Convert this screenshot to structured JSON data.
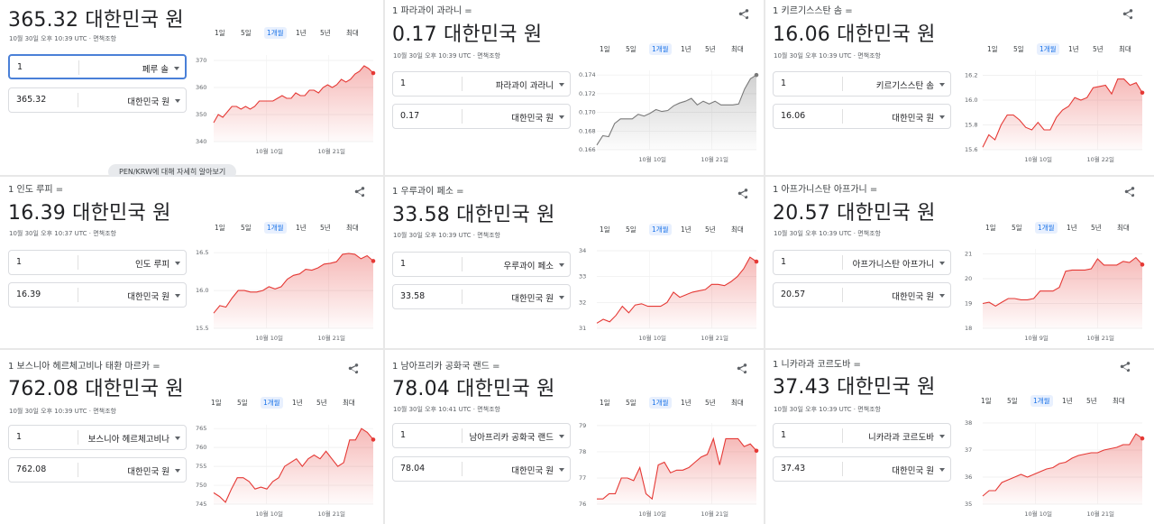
{
  "colors": {
    "accent": "#e53935",
    "neutral": "#7a7a7a",
    "tab_active": "#1a73e8"
  },
  "tabs": [
    "1일",
    "5일",
    "1개월",
    "1년",
    "5년",
    "최대"
  ],
  "share_icon": "share-icon",
  "cards": [
    {
      "head": "",
      "big": "365.32 대한민국 원",
      "timestamp": "10월 30일 오후 10:39 UTC · 면책조항",
      "from": {
        "value": "1",
        "unit": "페루 솔"
      },
      "to": {
        "value": "365.32",
        "unit": "대한민국 원"
      },
      "more_link": "PEN/KRW에 대해 자세히 알아보기",
      "chart_data": {
        "type": "area",
        "xticks": [
          "10월 10일",
          "10월 21일"
        ],
        "yticks": [
          "370",
          "360",
          "350",
          "340"
        ],
        "ylim": [
          340,
          372
        ],
        "values": [
          347,
          350,
          349,
          351,
          353,
          353,
          352,
          353,
          352,
          353,
          355,
          355,
          355,
          355,
          356,
          357,
          356,
          356,
          358,
          357,
          357,
          359,
          359,
          358,
          360,
          361,
          360,
          361,
          363,
          362,
          363,
          365,
          366,
          368,
          367,
          365.32
        ],
        "color": "red"
      }
    },
    {
      "head": "1 파라과이 과라니 =",
      "big": "0.17 대한민국 원",
      "timestamp": "10월 30일 오후 10:39 UTC · 면책조항",
      "from": {
        "value": "1",
        "unit": "파라과이 과라니"
      },
      "to": {
        "value": "0.17",
        "unit": "대한민국 원"
      },
      "chart_data": {
        "type": "area",
        "xticks": [
          "10월 10일",
          "10월 21일"
        ],
        "yticks": [
          "0.174",
          "0.172",
          "0.170",
          "0.168",
          "0.166"
        ],
        "ylim": [
          0.166,
          0.1745
        ],
        "values": [
          0.1665,
          0.1675,
          0.1674,
          0.1688,
          0.1693,
          0.1693,
          0.1693,
          0.1698,
          0.1696,
          0.1699,
          0.1703,
          0.1701,
          0.1702,
          0.1707,
          0.171,
          0.1712,
          0.1715,
          0.1708,
          0.1712,
          0.1709,
          0.1712,
          0.1708,
          0.1708,
          0.1708,
          0.1709,
          0.1725,
          0.1736,
          0.174
        ],
        "color": "grey"
      }
    },
    {
      "head": "1 키르기스스탄 솜 =",
      "big": "16.06 대한민국 원",
      "timestamp": "10월 30일 오후 10:39 UTC · 면책조항",
      "from": {
        "value": "1",
        "unit": "키르기스스탄 솜"
      },
      "to": {
        "value": "16.06",
        "unit": "대한민국 원"
      },
      "chart_data": {
        "type": "area",
        "xticks": [
          "10월 10일",
          "10월 22일"
        ],
        "yticks": [
          "16.2",
          "16.0",
          "15.8",
          "15.6"
        ],
        "ylim": [
          15.6,
          16.24
        ],
        "values": [
          15.62,
          15.72,
          15.68,
          15.8,
          15.88,
          15.88,
          15.84,
          15.78,
          15.76,
          15.82,
          15.76,
          15.76,
          15.86,
          15.92,
          15.95,
          16.02,
          16.0,
          16.02,
          16.1,
          16.11,
          16.12,
          16.05,
          16.17,
          16.17,
          16.12,
          16.14,
          16.06
        ],
        "color": "red"
      }
    },
    {
      "head": "1 인도 루피 =",
      "big": "16.39 대한민국 원",
      "timestamp": "10월 30일 오후 10:37 UTC · 면책조항",
      "from": {
        "value": "1",
        "unit": "인도 루피"
      },
      "to": {
        "value": "16.39",
        "unit": "대한민국 원"
      },
      "chart_data": {
        "type": "area",
        "xticks": [
          "10월 10일",
          "10월 21일"
        ],
        "yticks": [
          "16.5",
          "16.0",
          "15.5"
        ],
        "ylim": [
          15.5,
          16.55
        ],
        "values": [
          15.7,
          15.8,
          15.78,
          15.9,
          16.0,
          16.0,
          15.98,
          15.98,
          16.0,
          16.05,
          16.02,
          16.05,
          16.15,
          16.2,
          16.22,
          16.28,
          16.27,
          16.3,
          16.35,
          16.36,
          16.38,
          16.48,
          16.49,
          16.48,
          16.42,
          16.46,
          16.39
        ],
        "color": "red"
      }
    },
    {
      "head": "1 우루과이 페소 =",
      "big": "33.58 대한민국 원",
      "timestamp": "10월 30일 오후 10:39 UTC · 면책조항",
      "from": {
        "value": "1",
        "unit": "우루과이 페소"
      },
      "to": {
        "value": "33.58",
        "unit": "대한민국 원"
      },
      "chart_data": {
        "type": "area",
        "xticks": [
          "10월 10일",
          "10월 21일"
        ],
        "yticks": [
          "34",
          "33",
          "32",
          "31"
        ],
        "ylim": [
          31,
          34
        ],
        "values": [
          31.2,
          31.35,
          31.25,
          31.5,
          31.85,
          31.6,
          31.9,
          31.95,
          31.85,
          31.85,
          31.85,
          32.0,
          32.4,
          32.2,
          32.3,
          32.4,
          32.45,
          32.5,
          32.7,
          32.7,
          32.65,
          32.8,
          33.0,
          33.3,
          33.75,
          33.58
        ],
        "color": "red"
      }
    },
    {
      "head": "1 아프가니스탄 아프가니 =",
      "big": "20.57 대한민국 원",
      "timestamp": "10월 30일 오후 10:39 UTC · 면책조항",
      "from": {
        "value": "1",
        "unit": "아프가니스탄 아프가니"
      },
      "to": {
        "value": "20.57",
        "unit": "대한민국 원"
      },
      "chart_data": {
        "type": "area",
        "xticks": [
          "10월 9일",
          "10월 21일"
        ],
        "yticks": [
          "21",
          "20",
          "19",
          "18"
        ],
        "ylim": [
          18,
          21.2
        ],
        "values": [
          19.0,
          19.05,
          18.9,
          19.05,
          19.2,
          19.2,
          19.15,
          19.15,
          19.2,
          19.5,
          19.5,
          19.5,
          19.65,
          20.3,
          20.35,
          20.35,
          20.35,
          20.4,
          20.8,
          20.55,
          20.55,
          20.55,
          20.7,
          20.65,
          20.85,
          20.57
        ],
        "color": "red"
      }
    },
    {
      "head": "1 보스니아 헤르체고비나 태환 마르카 =",
      "big": "762.08 대한민국 원",
      "timestamp": "10월 30일 오후 10:39 UTC · 면책조항",
      "from": {
        "value": "1",
        "unit": "보스니아 헤르체고비나"
      },
      "to": {
        "value": "762.08",
        "unit": "대한민국 원"
      },
      "chart_data": {
        "type": "area",
        "xticks": [
          "10월 10일",
          "10월 21일"
        ],
        "yticks": [
          "765",
          "760",
          "755",
          "750",
          "745"
        ],
        "ylim": [
          745,
          766
        ],
        "values": [
          748,
          747,
          745.5,
          749,
          752,
          752,
          751,
          749,
          749.5,
          749,
          751,
          752,
          755,
          756,
          757,
          755,
          757,
          758,
          757,
          759,
          757,
          755,
          756,
          762,
          762,
          765,
          764,
          762.08
        ],
        "color": "red"
      }
    },
    {
      "head": "1 남아프리카 공화국 랜드 =",
      "big": "78.04 대한민국 원",
      "timestamp": "10월 30일 오후 10:41 UTC · 면책조항",
      "from": {
        "value": "1",
        "unit": "남아프리카 공화국 랜드"
      },
      "to": {
        "value": "78.04",
        "unit": "대한민국 원"
      },
      "chart_data": {
        "type": "area",
        "xticks": [
          "10월 10일",
          "10월 21일"
        ],
        "yticks": [
          "79",
          "78",
          "77",
          "76"
        ],
        "ylim": [
          76,
          79.1
        ],
        "values": [
          76.2,
          76.2,
          76.4,
          76.4,
          77.0,
          77.0,
          76.9,
          77.4,
          76.4,
          76.2,
          77.5,
          77.6,
          77.2,
          77.3,
          77.3,
          77.4,
          77.6,
          77.8,
          77.9,
          78.5,
          77.5,
          78.5,
          78.5,
          78.5,
          78.2,
          78.3,
          78.04
        ],
        "color": "red"
      }
    },
    {
      "head": "1 니카라과 코르도바 =",
      "big": "37.43 대한민국 원",
      "timestamp": "10월 30일 오후 10:39 UTC · 면책조항",
      "from": {
        "value": "1",
        "unit": "니카라과 코르도바"
      },
      "to": {
        "value": "37.43",
        "unit": "대한민국 원"
      },
      "chart_data": {
        "type": "area",
        "xticks": [
          "10월 10일",
          "10월 21일"
        ],
        "yticks": [
          "38",
          "37",
          "36",
          "35"
        ],
        "ylim": [
          35,
          38
        ],
        "values": [
          35.3,
          35.5,
          35.5,
          35.8,
          35.9,
          36.0,
          36.1,
          36.0,
          36.1,
          36.2,
          36.3,
          36.35,
          36.5,
          36.55,
          36.7,
          36.8,
          36.85,
          36.9,
          36.9,
          37.0,
          37.05,
          37.1,
          37.2,
          37.2,
          37.6,
          37.43
        ],
        "color": "red"
      }
    }
  ]
}
